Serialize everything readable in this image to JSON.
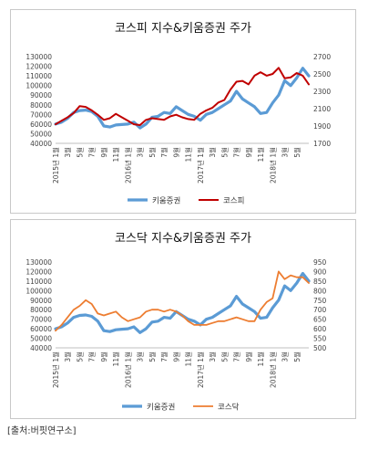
{
  "source": "[출처:버핏연구소]",
  "charts": [
    {
      "type": "line",
      "title": "코스피 지수&키움증권 주가",
      "left_axis": {
        "min": 40000,
        "max": 130000,
        "step": 10000,
        "ticks": [
          "40000",
          "50000",
          "60000",
          "70000",
          "80000",
          "90000",
          "100000",
          "110000",
          "120000",
          "130000"
        ]
      },
      "right_axis": {
        "min": 1700,
        "max": 2700,
        "step": 200,
        "ticks": [
          "1700",
          "1900",
          "2100",
          "2300",
          "2500",
          "2700"
        ]
      },
      "x_ticks": [
        {
          "i": 0,
          "label": "2015년 1월"
        },
        {
          "i": 2,
          "label": "3월"
        },
        {
          "i": 4,
          "label": "5월"
        },
        {
          "i": 6,
          "label": "7월"
        },
        {
          "i": 8,
          "label": "9월"
        },
        {
          "i": 10,
          "label": "11월"
        },
        {
          "i": 12,
          "label": "2016년 1월"
        },
        {
          "i": 14,
          "label": "3월"
        },
        {
          "i": 16,
          "label": "5월"
        },
        {
          "i": 18,
          "label": "7월"
        },
        {
          "i": 20,
          "label": "9월"
        },
        {
          "i": 22,
          "label": "11월"
        },
        {
          "i": 24,
          "label": "2017년 1월"
        },
        {
          "i": 26,
          "label": "3월"
        },
        {
          "i": 28,
          "label": "5월"
        },
        {
          "i": 30,
          "label": "7월"
        },
        {
          "i": 32,
          "label": "9월"
        },
        {
          "i": 34,
          "label": "11월"
        },
        {
          "i": 36,
          "label": "2018년 1월"
        },
        {
          "i": 38,
          "label": "3월"
        },
        {
          "i": 40,
          "label": "5월"
        }
      ],
      "series": [
        {
          "name": "키움증권",
          "axis": "left",
          "color": "#5b9bd5",
          "width": 3.2,
          "values": [
            60000,
            62000,
            66000,
            72000,
            74000,
            74500,
            73000,
            68000,
            58000,
            57000,
            59000,
            59500,
            60000,
            62000,
            56000,
            60000,
            67000,
            68000,
            72000,
            71000,
            78000,
            74000,
            70000,
            68000,
            64000,
            70000,
            72000,
            76000,
            80000,
            84000,
            94000,
            86000,
            82000,
            78000,
            71000,
            72000,
            82000,
            90000,
            105000,
            100000,
            108000,
            118000,
            110000
          ]
        },
        {
          "name": "코스피",
          "axis": "right",
          "color": "#c00000",
          "width": 2,
          "values": [
            1920,
            1960,
            2000,
            2050,
            2130,
            2120,
            2080,
            2030,
            1970,
            1990,
            2040,
            2000,
            1960,
            1920,
            1910,
            1970,
            1990,
            1980,
            1970,
            2010,
            2030,
            2000,
            1980,
            1970,
            2040,
            2080,
            2110,
            2170,
            2200,
            2320,
            2410,
            2420,
            2380,
            2480,
            2520,
            2480,
            2500,
            2570,
            2450,
            2460,
            2510,
            2480,
            2380
          ]
        }
      ]
    },
    {
      "type": "line",
      "title": "코스닥 지수&키움증권 주가",
      "left_axis": {
        "min": 40000,
        "max": 130000,
        "step": 10000,
        "ticks": [
          "40000",
          "50000",
          "60000",
          "70000",
          "80000",
          "90000",
          "100000",
          "110000",
          "120000",
          "130000"
        ]
      },
      "right_axis": {
        "min": 500,
        "max": 950,
        "step": 50,
        "ticks": [
          "500",
          "550",
          "600",
          "650",
          "700",
          "750",
          "800",
          "850",
          "900",
          "950"
        ]
      },
      "x_ticks": [
        {
          "i": 0,
          "label": "2015년 1월"
        },
        {
          "i": 2,
          "label": "3월"
        },
        {
          "i": 4,
          "label": "5월"
        },
        {
          "i": 6,
          "label": "7월"
        },
        {
          "i": 8,
          "label": "9월"
        },
        {
          "i": 10,
          "label": "11월"
        },
        {
          "i": 12,
          "label": "2016년 1월"
        },
        {
          "i": 14,
          "label": "3월"
        },
        {
          "i": 16,
          "label": "5월"
        },
        {
          "i": 18,
          "label": "7월"
        },
        {
          "i": 20,
          "label": "9월"
        },
        {
          "i": 22,
          "label": "11월"
        },
        {
          "i": 24,
          "label": "2017년 1월"
        },
        {
          "i": 26,
          "label": "3월"
        },
        {
          "i": 28,
          "label": "5월"
        },
        {
          "i": 30,
          "label": "7월"
        },
        {
          "i": 32,
          "label": "9월"
        },
        {
          "i": 34,
          "label": "11월"
        },
        {
          "i": 36,
          "label": "2018년 1월"
        },
        {
          "i": 38,
          "label": "3월"
        },
        {
          "i": 40,
          "label": "5월"
        }
      ],
      "series": [
        {
          "name": "키움증권",
          "axis": "left",
          "color": "#5b9bd5",
          "width": 3.2,
          "values": [
            60000,
            62000,
            66000,
            72000,
            74000,
            74500,
            73000,
            68000,
            58000,
            57000,
            59000,
            59500,
            60000,
            62000,
            56000,
            60000,
            67000,
            68000,
            72000,
            71000,
            78000,
            74000,
            70000,
            68000,
            64000,
            70000,
            72000,
            76000,
            80000,
            84000,
            94000,
            86000,
            82000,
            78000,
            71000,
            72000,
            82000,
            90000,
            105000,
            100000,
            108000,
            118000,
            110000
          ]
        },
        {
          "name": "코스닥",
          "axis": "right",
          "color": "#ed7d31",
          "width": 1.8,
          "values": [
            590,
            620,
            660,
            700,
            720,
            750,
            730,
            680,
            670,
            680,
            690,
            660,
            640,
            650,
            660,
            690,
            700,
            700,
            690,
            700,
            690,
            670,
            640,
            620,
            620,
            620,
            630,
            640,
            640,
            650,
            660,
            650,
            640,
            640,
            700,
            740,
            760,
            900,
            860,
            880,
            870,
            870,
            840
          ]
        }
      ]
    }
  ]
}
